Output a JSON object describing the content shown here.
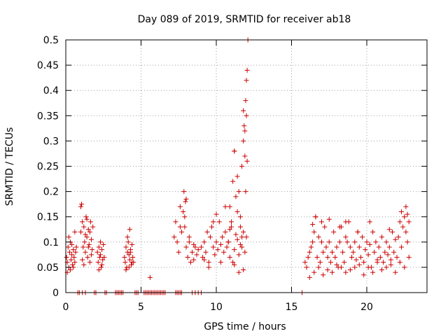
{
  "chart_data": {
    "type": "scatter",
    "title": "Day 089 of 2019, SRMTID for receiver ab18",
    "xlabel": "GPS time / hours",
    "ylabel": "SRMTID / TECUs",
    "xlim": [
      0,
      24
    ],
    "ylim": [
      0,
      0.5
    ],
    "x_ticks": [
      0,
      5,
      10,
      15,
      20
    ],
    "x_tick_labels": [
      "0",
      "5",
      "10",
      "15",
      "20"
    ],
    "y_ticks": [
      0,
      0.05,
      0.1,
      0.15,
      0.2,
      0.25,
      0.3,
      0.35,
      0.4,
      0.45,
      0.5
    ],
    "y_tick_labels": [
      "0",
      "0.05",
      "0.1",
      "0.15",
      "0.2",
      "0.25",
      "0.3",
      "0.35",
      "0.4",
      "0.45",
      "0.5"
    ],
    "grid": true,
    "marker": "+",
    "marker_color": "#cc0000",
    "series": [
      {
        "name": "SRMTID",
        "x": [
          0.05,
          0.1,
          0.15,
          0.2,
          0.25,
          0.3,
          0.35,
          0.4,
          0.45,
          0.5,
          0.55,
          0.6,
          0.65,
          0.7,
          0.1,
          0.2,
          0.3,
          0.4,
          0.5,
          0.6,
          1.0,
          1.05,
          1.1,
          1.15,
          1.2,
          1.25,
          1.3,
          1.35,
          1.4,
          1.45,
          1.5,
          1.55,
          1.6,
          1.65,
          1.7,
          1.75,
          1.8,
          1.0,
          1.1,
          1.2,
          1.3,
          1.4,
          1.5,
          1.6,
          1.7,
          2.1,
          2.15,
          2.2,
          2.25,
          2.3,
          2.35,
          2.4,
          2.45,
          2.5,
          2.55,
          2.2,
          2.3,
          2.4,
          3.9,
          3.95,
          4.0,
          4.05,
          4.1,
          4.15,
          4.2,
          4.25,
          4.3,
          4.35,
          4.4,
          4.45,
          4.5,
          4.0,
          4.1,
          4.2,
          4.3,
          4.4,
          4.25,
          5.6,
          7.2,
          7.3,
          7.4,
          7.5,
          7.6,
          7.7,
          7.8,
          7.9,
          8.0,
          8.1,
          8.2,
          8.3,
          8.4,
          8.5,
          8.6,
          8.7,
          8.8,
          7.85,
          7.95,
          7.6,
          7.9,
          8.0,
          8.2,
          8.5,
          9.0,
          9.1,
          9.2,
          9.3,
          9.4,
          9.5,
          9.6,
          9.7,
          9.8,
          9.9,
          10.0,
          10.1,
          10.2,
          10.3,
          10.4,
          10.5,
          10.6,
          10.7,
          10.8,
          10.9,
          11.0,
          11.1,
          11.2,
          11.3,
          11.4,
          11.5,
          11.6,
          11.7,
          11.8,
          11.9,
          12.0,
          9.2,
          9.5,
          9.8,
          10.0,
          10.3,
          10.6,
          10.9,
          11.2,
          11.5,
          11.8,
          10.8,
          10.9,
          11.0,
          11.1,
          11.2,
          11.3,
          11.4,
          11.5,
          11.6,
          11.7,
          11.8,
          11.85,
          11.9,
          11.95,
          12.0,
          12.05,
          12.1,
          11.2,
          11.4,
          11.6,
          11.7,
          11.8,
          11.9,
          11.95,
          12.0,
          12.05,
          15.9,
          16.0,
          16.1,
          16.2,
          16.3,
          16.4,
          16.5,
          16.6,
          16.7,
          16.8,
          16.9,
          17.0,
          17.1,
          17.2,
          17.3,
          17.4,
          17.5,
          17.6,
          17.7,
          17.8,
          17.9,
          18.0,
          18.1,
          18.2,
          18.3,
          18.4,
          18.5,
          18.6,
          18.7,
          18.8,
          18.9,
          19.0,
          19.1,
          19.2,
          19.3,
          19.4,
          19.5,
          19.6,
          19.7,
          19.8,
          19.9,
          20.0,
          20.1,
          20.2,
          20.3,
          20.4,
          20.5,
          20.6,
          20.7,
          20.8,
          20.9,
          21.0,
          21.1,
          21.2,
          21.3,
          21.4,
          21.5,
          21.6,
          21.7,
          21.8,
          21.9,
          22.0,
          22.1,
          22.2,
          22.3,
          22.4,
          22.5,
          22.6,
          22.7,
          22.8,
          16.2,
          16.5,
          16.8,
          17.1,
          17.4,
          17.7,
          18.0,
          18.3,
          18.6,
          18.9,
          19.2,
          19.5,
          19.8,
          20.1,
          20.4,
          20.7,
          21.0,
          21.3,
          21.6,
          21.9,
          22.2,
          22.5,
          22.8,
          16.4,
          16.6,
          17.0,
          17.5,
          18.2,
          18.6,
          19.4,
          20.2,
          21.5,
          22.3,
          22.6,
          22.7,
          0.8,
          0.9,
          1.1,
          1.3,
          1.9,
          2.0,
          2.6,
          2.7,
          3.3,
          3.4,
          3.5,
          3.6,
          3.7,
          3.8,
          4.6,
          4.7,
          4.8,
          5.2,
          5.3,
          5.4,
          5.5,
          5.6,
          5.7,
          5.8,
          5.9,
          6.0,
          6.1,
          6.2,
          6.3,
          6.4,
          6.5,
          6.6,
          7.3,
          7.4,
          7.5,
          7.6,
          7.7,
          8.4,
          8.6,
          8.8,
          9.0,
          15.7
        ],
        "y": [
          0.07,
          0.06,
          0.09,
          0.05,
          0.08,
          0.1,
          0.065,
          0.075,
          0.055,
          0.085,
          0.07,
          0.06,
          0.08,
          0.09,
          0.04,
          0.11,
          0.045,
          0.095,
          0.05,
          0.12,
          0.12,
          0.175,
          0.14,
          0.09,
          0.13,
          0.1,
          0.08,
          0.15,
          0.11,
          0.07,
          0.125,
          0.095,
          0.06,
          0.14,
          0.105,
          0.085,
          0.13,
          0.17,
          0.065,
          0.055,
          0.115,
          0.145,
          0.09,
          0.12,
          0.075,
          0.08,
          0.06,
          0.09,
          0.07,
          0.075,
          0.05,
          0.085,
          0.065,
          0.095,
          0.07,
          0.045,
          0.1,
          0.055,
          0.07,
          0.06,
          0.09,
          0.05,
          0.08,
          0.1,
          0.075,
          0.065,
          0.085,
          0.055,
          0.095,
          0.07,
          0.06,
          0.045,
          0.11,
          0.05,
          0.08,
          0.06,
          0.125,
          0.03,
          0.11,
          0.14,
          0.1,
          0.08,
          0.13,
          0.12,
          0.16,
          0.15,
          0.09,
          0.07,
          0.1,
          0.06,
          0.08,
          0.065,
          0.09,
          0.075,
          0.085,
          0.2,
          0.18,
          0.17,
          0.13,
          0.185,
          0.11,
          0.095,
          0.09,
          0.07,
          0.1,
          0.08,
          0.12,
          0.06,
          0.11,
          0.13,
          0.09,
          0.075,
          0.1,
          0.085,
          0.14,
          0.095,
          0.11,
          0.08,
          0.12,
          0.09,
          0.1,
          0.07,
          0.13,
          0.06,
          0.085,
          0.115,
          0.105,
          0.075,
          0.095,
          0.09,
          0.12,
          0.08,
          0.11,
          0.065,
          0.05,
          0.14,
          0.155,
          0.06,
          0.17,
          0.125,
          0.055,
          0.04,
          0.045,
          0.1,
          0.17,
          0.14,
          0.22,
          0.28,
          0.19,
          0.16,
          0.2,
          0.13,
          0.25,
          0.3,
          0.33,
          0.32,
          0.38,
          0.42,
          0.44,
          0.5,
          0.28,
          0.23,
          0.15,
          0.11,
          0.36,
          0.27,
          0.2,
          0.35,
          0.26,
          0.06,
          0.05,
          0.07,
          0.08,
          0.09,
          0.1,
          0.12,
          0.15,
          0.07,
          0.11,
          0.06,
          0.1,
          0.08,
          0.13,
          0.09,
          0.07,
          0.1,
          0.06,
          0.08,
          0.12,
          0.07,
          0.09,
          0.05,
          0.1,
          0.13,
          0.08,
          0.06,
          0.11,
          0.1,
          0.14,
          0.09,
          0.07,
          0.08,
          0.1,
          0.065,
          0.12,
          0.09,
          0.07,
          0.11,
          0.06,
          0.085,
          0.1,
          0.075,
          0.095,
          0.05,
          0.12,
          0.08,
          0.1,
          0.065,
          0.09,
          0.07,
          0.11,
          0.06,
          0.08,
          0.1,
          0.075,
          0.09,
          0.065,
          0.12,
          0.08,
          0.105,
          0.07,
          0.11,
          0.14,
          0.09,
          0.13,
          0.15,
          0.12,
          0.1,
          0.14,
          0.03,
          0.04,
          0.05,
          0.035,
          0.045,
          0.04,
          0.055,
          0.05,
          0.04,
          0.045,
          0.05,
          0.055,
          0.035,
          0.05,
          0.04,
          0.06,
          0.045,
          0.05,
          0.055,
          0.04,
          0.06,
          0.05,
          0.07,
          0.135,
          0.15,
          0.14,
          0.145,
          0.13,
          0.14,
          0.12,
          0.14,
          0.125,
          0.16,
          0.17,
          0.155,
          0,
          0,
          0,
          0,
          0,
          0,
          0,
          0,
          0,
          0,
          0,
          0,
          0,
          0,
          0,
          0,
          0,
          0,
          0,
          0,
          0,
          0,
          0,
          0,
          0,
          0,
          0,
          0,
          0,
          0,
          0,
          0,
          0,
          0,
          0,
          0,
          0,
          0,
          0,
          0,
          0,
          0
        ]
      }
    ]
  }
}
